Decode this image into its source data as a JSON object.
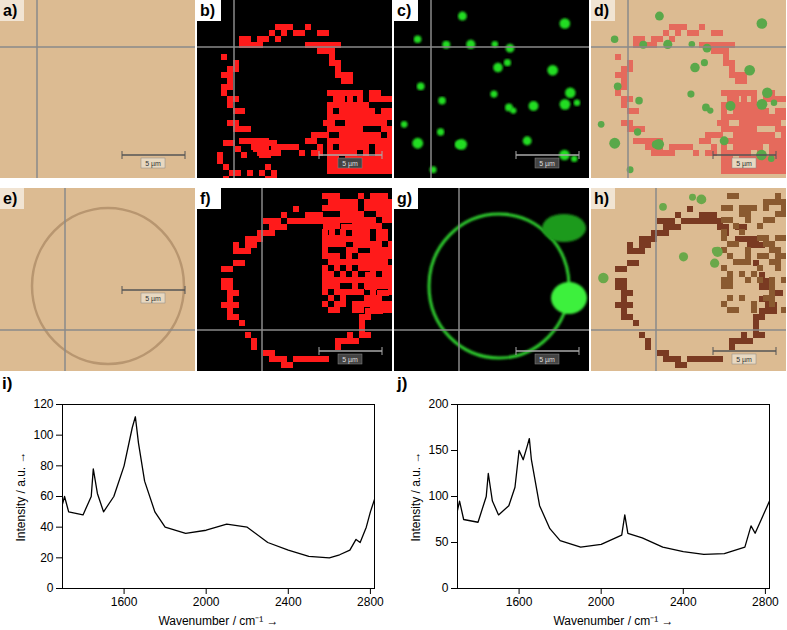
{
  "image_panels": [
    {
      "label": "a)",
      "scale_bar": "5 µm"
    },
    {
      "label": "b)",
      "scale_bar": "5 µm"
    },
    {
      "label": "c)",
      "scale_bar": "5 µm"
    },
    {
      "label": "d)",
      "scale_bar": "5 µm"
    },
    {
      "label": "e)",
      "scale_bar": "5 µm"
    },
    {
      "label": "f)",
      "scale_bar": "5 µm"
    },
    {
      "label": "g)",
      "scale_bar": "5 µm"
    },
    {
      "label": "h)",
      "scale_bar": "5 µm"
    }
  ],
  "chart_data": [
    {
      "type": "line",
      "title": "i)",
      "x_label": "Wavenumber / cm⁻¹ →",
      "y_label": "Intensity / a.u. →",
      "x": [
        1300,
        1310,
        1330,
        1400,
        1440,
        1450,
        1470,
        1500,
        1550,
        1600,
        1640,
        1655,
        1670,
        1700,
        1750,
        1800,
        1900,
        2000,
        2100,
        2200,
        2300,
        2400,
        2500,
        2600,
        2650,
        2700,
        2730,
        2750,
        2780,
        2800,
        2820
      ],
      "values": [
        55,
        60,
        50,
        48,
        60,
        78,
        62,
        50,
        60,
        80,
        105,
        112,
        95,
        70,
        50,
        40,
        36,
        38,
        42,
        40,
        30,
        25,
        21,
        20,
        22,
        25,
        32,
        30,
        40,
        50,
        58
      ],
      "color": "#000000",
      "xlim": [
        1300,
        2820
      ],
      "xticks": [
        1600,
        2000,
        2400,
        2800
      ],
      "ylim": [
        0,
        120
      ],
      "yticks": [
        0,
        20,
        40,
        60,
        80,
        100,
        120
      ]
    },
    {
      "type": "line",
      "title": "j)",
      "x_label": "Wavenumber / cm⁻¹ →",
      "y_label": "Intensity / a.u. →",
      "x": [
        1300,
        1310,
        1330,
        1400,
        1440,
        1450,
        1470,
        1500,
        1550,
        1580,
        1600,
        1610,
        1620,
        1640,
        1650,
        1660,
        1700,
        1750,
        1800,
        1900,
        2000,
        2100,
        2115,
        2130,
        2200,
        2300,
        2400,
        2500,
        2600,
        2700,
        2730,
        2750,
        2780,
        2800,
        2820
      ],
      "values": [
        85,
        95,
        75,
        72,
        100,
        125,
        95,
        80,
        90,
        110,
        150,
        145,
        140,
        155,
        163,
        140,
        90,
        65,
        52,
        45,
        48,
        58,
        80,
        60,
        55,
        45,
        40,
        37,
        38,
        45,
        68,
        60,
        75,
        85,
        95
      ],
      "color": "#000000",
      "xlim": [
        1300,
        2820
      ],
      "xticks": [
        1600,
        2000,
        2400,
        2800
      ],
      "ylim": [
        0,
        200
      ],
      "yticks": [
        0,
        50,
        100,
        150,
        200
      ]
    }
  ]
}
